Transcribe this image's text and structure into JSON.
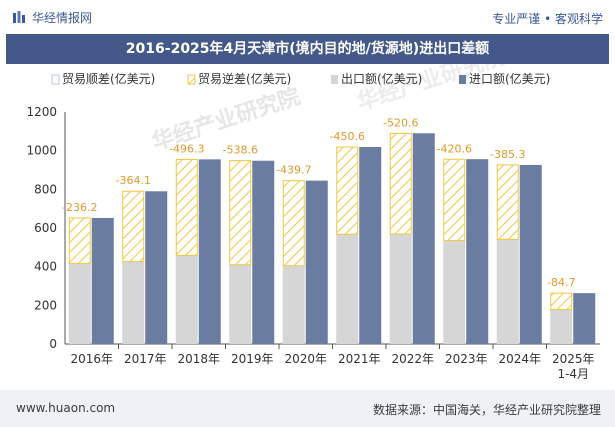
{
  "header": {
    "site_name": "华经情报网",
    "tagline": "专业严谨 • 客观科学"
  },
  "title": "2016-2025年4月天津市(境内目的地/货源地)进出口差额",
  "footer": {
    "website": "www.huaon.com",
    "source": "数据来源：中国海关，华经产业研究院整理"
  },
  "watermark": "华经产业研究院",
  "colors": {
    "export": "#d6d6d6",
    "import": "#6a7da0",
    "surplus": "#b3c7e6",
    "deficit": "#f2c744",
    "label": "#e09a2a",
    "title_bg": "#44598a"
  },
  "chart_data": {
    "type": "bar",
    "categories": [
      "2016年",
      "2017年",
      "2018年",
      "2019年",
      "2020年",
      "2021年",
      "2022年",
      "2023年",
      "2024年",
      "2025年\n1-4月"
    ],
    "legend": [
      "贸易顺差(亿美元)",
      "贸易逆差(亿美元)",
      "出口额(亿美元)",
      "进口额(亿美元)"
    ],
    "series": [
      {
        "name": "出口额(亿美元)",
        "values": [
          416,
          426,
          458,
          410,
          405,
          568,
          569,
          535,
          541,
          178
        ]
      },
      {
        "name": "进口额(亿美元)",
        "values": [
          652,
          790,
          955,
          948,
          845,
          1019,
          1090,
          956,
          926,
          263
        ]
      },
      {
        "name": "贸易逆差(亿美元)",
        "values": [
          -236.2,
          -364.1,
          -496.3,
          -538.6,
          -439.7,
          -450.6,
          -520.6,
          -420.6,
          -385.3,
          -84.7
        ]
      }
    ],
    "data_labels": [
      "-236.2",
      "-364.1",
      "-496.3",
      "-538.6",
      "-439.7",
      "-450.6",
      "-520.6",
      "-420.6",
      "-385.3",
      "-84.7"
    ],
    "yticks": [
      "0",
      "200",
      "400",
      "600",
      "800",
      "1000",
      "1200"
    ],
    "ylim": [
      0,
      1200
    ],
    "legend_position": "top-left",
    "grid": false
  }
}
